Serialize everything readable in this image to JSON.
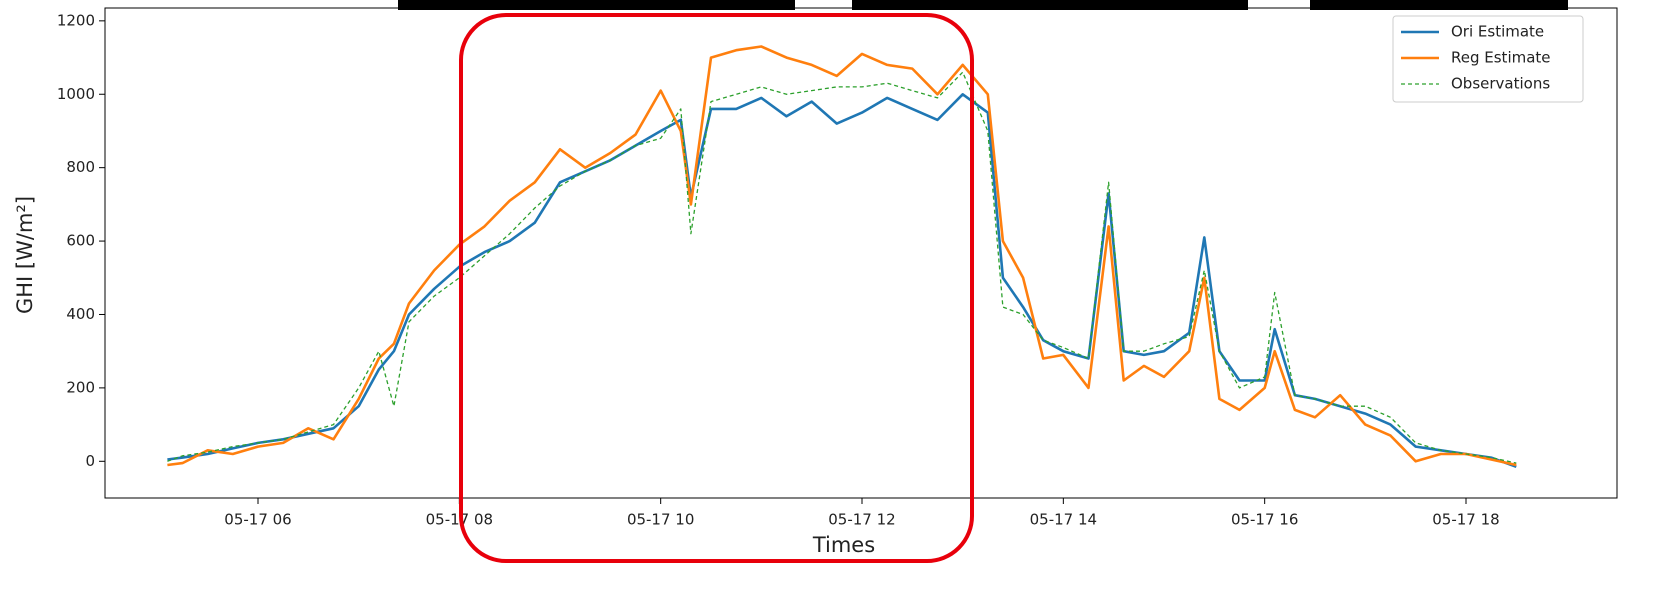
{
  "chart_data": {
    "type": "line",
    "x_label": "Times",
    "y_label": "GHI [W/m²]",
    "x": [
      5.1,
      5.25,
      5.5,
      5.75,
      6,
      6.25,
      6.5,
      6.75,
      7,
      7.2,
      7.35,
      7.5,
      7.75,
      8,
      8.25,
      8.5,
      8.75,
      9,
      9.25,
      9.5,
      9.75,
      10,
      10.2,
      10.3,
      10.5,
      10.75,
      11,
      11.25,
      11.5,
      11.75,
      12,
      12.25,
      12.5,
      12.75,
      13,
      13.25,
      13.4,
      13.6,
      13.8,
      14,
      14.25,
      14.45,
      14.6,
      14.8,
      15,
      15.25,
      15.4,
      15.55,
      15.75,
      16,
      16.1,
      16.3,
      16.5,
      16.75,
      17,
      17.25,
      17.5,
      17.75,
      18,
      18.25,
      18.5
    ],
    "series": [
      {
        "name": "Ori Estimate",
        "color": "#1f77b4",
        "style": "solid",
        "values": [
          5,
          10,
          20,
          35,
          50,
          60,
          75,
          90,
          150,
          250,
          300,
          400,
          470,
          530,
          570,
          600,
          650,
          760,
          790,
          820,
          860,
          900,
          930,
          720,
          960,
          960,
          990,
          940,
          980,
          920,
          950,
          990,
          960,
          930,
          1000,
          950,
          500,
          420,
          330,
          300,
          280,
          730,
          300,
          290,
          300,
          350,
          610,
          300,
          220,
          220,
          360,
          180,
          170,
          150,
          130,
          100,
          40,
          30,
          20,
          10,
          -15
        ]
      },
      {
        "name": "Reg Estimate",
        "color": "#ff7f0e",
        "style": "solid",
        "values": [
          -10,
          -5,
          30,
          20,
          40,
          50,
          90,
          60,
          170,
          280,
          320,
          430,
          520,
          590,
          640,
          710,
          760,
          850,
          800,
          840,
          890,
          1010,
          900,
          700,
          1100,
          1120,
          1130,
          1100,
          1080,
          1050,
          1110,
          1080,
          1070,
          1000,
          1080,
          1000,
          600,
          500,
          280,
          290,
          200,
          640,
          220,
          260,
          230,
          300,
          500,
          170,
          140,
          200,
          300,
          140,
          120,
          180,
          100,
          70,
          0,
          20,
          20,
          5,
          -10
        ]
      },
      {
        "name": "Observations",
        "color": "#2ca02c",
        "style": "dashed",
        "values": [
          0,
          15,
          25,
          40,
          50,
          60,
          80,
          100,
          200,
          300,
          150,
          380,
          450,
          500,
          560,
          620,
          690,
          750,
          790,
          820,
          860,
          880,
          960,
          620,
          980,
          1000,
          1020,
          1000,
          1010,
          1020,
          1020,
          1030,
          1010,
          990,
          1060,
          900,
          420,
          400,
          330,
          310,
          280,
          760,
          300,
          300,
          320,
          340,
          520,
          300,
          200,
          230,
          460,
          180,
          170,
          150,
          150,
          120,
          50,
          30,
          20,
          10,
          -5
        ]
      }
    ],
    "xlim": [
      4.48,
      19.5
    ],
    "xticks": [
      {
        "value": 6,
        "label": "05-17 06"
      },
      {
        "value": 8,
        "label": "05-17 08"
      },
      {
        "value": 10,
        "label": "05-17 10"
      },
      {
        "value": 12,
        "label": "05-17 12"
      },
      {
        "value": 14,
        "label": "05-17 14"
      },
      {
        "value": 16,
        "label": "05-17 16"
      },
      {
        "value": 18,
        "label": "05-17 18"
      }
    ],
    "ylim": [
      -100,
      1235
    ],
    "yticks": [
      0,
      200,
      400,
      600,
      800,
      1000,
      1200
    ],
    "grid": false,
    "legend": "upper right"
  }
}
